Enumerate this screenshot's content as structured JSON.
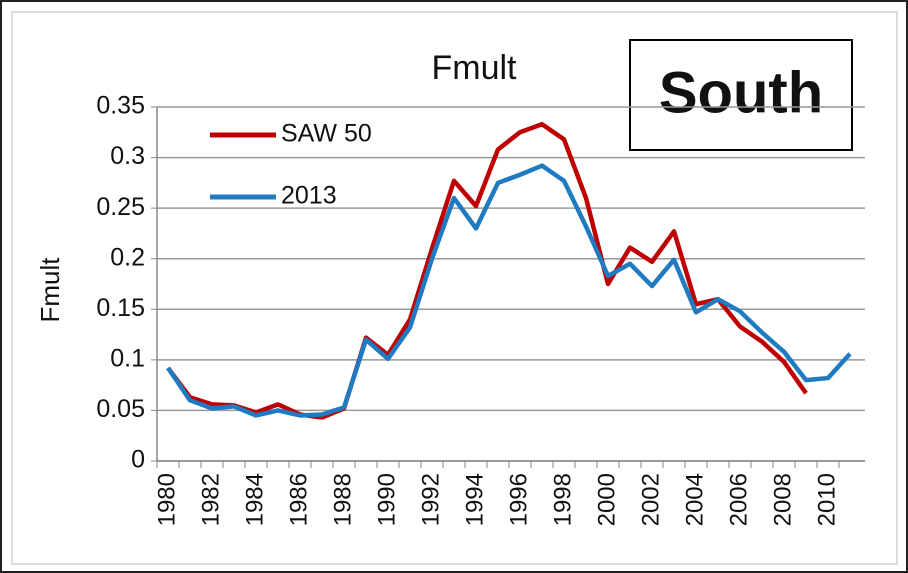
{
  "chart_data": {
    "type": "line",
    "title": "Fmult",
    "y_label": "Fmult",
    "annotation": "South",
    "categories": [
      "1980",
      null,
      "1982",
      null,
      "1984",
      null,
      "1986",
      null,
      "1988",
      null,
      "1990",
      null,
      "1992",
      null,
      "1994",
      null,
      "1996",
      null,
      "1998",
      null,
      "2000",
      null,
      "2002",
      null,
      "2004",
      null,
      "2006",
      null,
      "2008",
      null,
      "2010",
      null
    ],
    "series": [
      {
        "name": "SAW 50",
        "color": "#c00000",
        "values": [
          0.092,
          0.063,
          0.056,
          0.055,
          0.048,
          0.056,
          0.046,
          0.043,
          0.052,
          0.122,
          0.105,
          0.14,
          0.21,
          0.277,
          0.252,
          0.308,
          0.325,
          0.333,
          0.318,
          0.26,
          0.175,
          0.211,
          0.197,
          0.227,
          0.155,
          0.16,
          0.133,
          0.118,
          0.098,
          0.067,
          null,
          null
        ]
      },
      {
        "name": "2013",
        "color": "#1f7bc1",
        "values": [
          0.092,
          0.06,
          0.052,
          0.054,
          0.045,
          0.05,
          0.045,
          0.046,
          0.053,
          0.12,
          0.101,
          0.132,
          0.2,
          0.26,
          0.23,
          0.275,
          0.283,
          0.292,
          0.277,
          0.232,
          0.183,
          0.195,
          0.173,
          0.199,
          0.147,
          0.16,
          0.148,
          0.127,
          0.108,
          0.08,
          0.082,
          0.106
        ]
      }
    ],
    "ylim": [
      0,
      0.35
    ],
    "yticks": [
      0,
      0.05,
      0.1,
      0.15,
      0.2,
      0.25,
      0.3,
      0.35
    ],
    "grid": true,
    "legend": "upper left"
  }
}
